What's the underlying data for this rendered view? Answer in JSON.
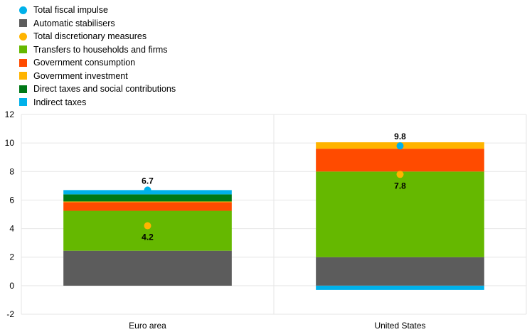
{
  "chart_data": {
    "type": "bar",
    "stacked": true,
    "categories": [
      "Euro area",
      "United States"
    ],
    "ylim": [
      -2,
      12
    ],
    "yticks": [
      -2,
      0,
      2,
      4,
      6,
      8,
      10,
      12
    ],
    "grid": true,
    "legend_position": "top-left",
    "series": [
      {
        "name": "Automatic stabilisers",
        "color": "#5c5c5c",
        "values": [
          2.45,
          2.0
        ]
      },
      {
        "name": "Transfers to households and firms",
        "color": "#65b800",
        "values": [
          2.8,
          6.0
        ]
      },
      {
        "name": "Government consumption",
        "color": "#ff4b00",
        "values": [
          0.6,
          1.6
        ]
      },
      {
        "name": "Government investment",
        "color": "#ffb400",
        "values": [
          0.05,
          0.45
        ]
      },
      {
        "name": "Direct taxes and social contributions",
        "color": "#007816",
        "values": [
          0.5,
          0.0
        ]
      },
      {
        "name": "Indirect taxes",
        "color": "#00b1ea",
        "values": [
          0.3,
          -0.3
        ]
      }
    ],
    "points": [
      {
        "name": "Total fiscal impulse",
        "color": "#00b1ea",
        "values": [
          6.7,
          9.8
        ],
        "labels": [
          "6.7",
          "9.8"
        ]
      },
      {
        "name": "Total discretionary measures",
        "color": "#ffb400",
        "values": [
          4.2,
          7.8
        ],
        "labels": [
          "4.2",
          "7.8"
        ]
      }
    ],
    "legend_order": [
      {
        "name": "Total fiscal impulse",
        "color": "#00b1ea",
        "marker": "dot"
      },
      {
        "name": "Automatic stabilisers",
        "color": "#5c5c5c",
        "marker": "square"
      },
      {
        "name": "Total discretionary measures",
        "color": "#ffb400",
        "marker": "dot"
      },
      {
        "name": "Transfers to households and firms",
        "color": "#65b800",
        "marker": "square"
      },
      {
        "name": "Government consumption",
        "color": "#ff4b00",
        "marker": "square"
      },
      {
        "name": "Government investment",
        "color": "#ffb400",
        "marker": "square"
      },
      {
        "name": "Direct taxes and social contributions",
        "color": "#007816",
        "marker": "square"
      },
      {
        "name": "Indirect taxes",
        "color": "#00b1ea",
        "marker": "square"
      }
    ]
  }
}
